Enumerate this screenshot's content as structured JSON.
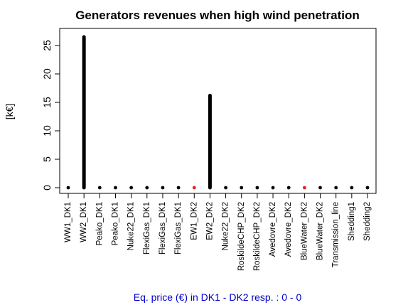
{
  "chart_data": {
    "type": "scatter",
    "title": "Generators revenues when high wind penetration",
    "xlabel": "",
    "ylabel": "[k€]",
    "ylim": [
      -1,
      28
    ],
    "yticks": [
      0,
      5,
      10,
      15,
      20,
      25
    ],
    "grid": false,
    "categories": [
      "WW1_DK1",
      "WW2_DK1",
      "Peako_DK1",
      "Peako_DK1",
      "Nuke22_DK1",
      "FlexiGas_DK1",
      "FlexiGas_DK1",
      "FlexiGas_DK1",
      "EW1_DK2",
      "EW2_DK2",
      "Nuke22_DK2",
      "RoskildeCHP_DK2",
      "RoskildeCHP_DK2",
      "Avedovre_DK2",
      "Avedovre_DK2",
      "BlueWater_DK2",
      "BlueWater_DK2",
      "Transmission_line",
      "Shedding1",
      "Shedding2"
    ],
    "values": [
      0,
      26.5,
      0,
      0,
      0,
      0,
      0,
      0,
      0,
      16.2,
      0,
      0,
      0,
      0,
      0,
      0,
      0,
      0,
      0,
      0
    ],
    "point_colors": [
      "#000000",
      "#000000",
      "#000000",
      "#000000",
      "#000000",
      "#000000",
      "#000000",
      "#000000",
      "#e0241c",
      "#000000",
      "#000000",
      "#000000",
      "#000000",
      "#000000",
      "#000000",
      "#e0241c",
      "#000000",
      "#000000",
      "#000000",
      "#000000"
    ],
    "footer": "Eq. price (€) in DK1 - DK2 resp. : 0 - 0",
    "footer_color": "#0000cc"
  }
}
